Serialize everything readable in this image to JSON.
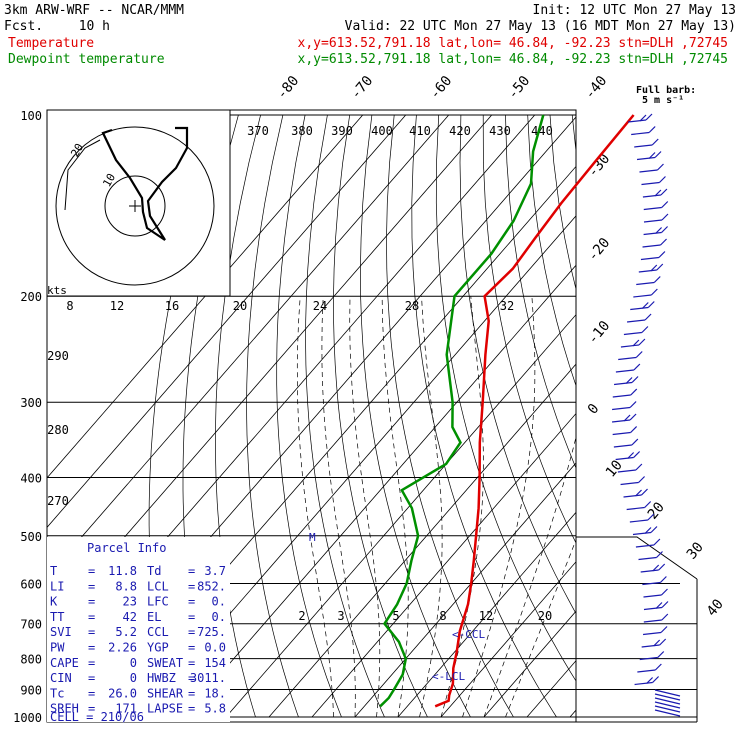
{
  "header": {
    "model": "3km ARW-WRF -- NCAR/MMM",
    "init": "Init: 12 UTC Mon 27 May 13",
    "fcst_label": "Fcst.",
    "fcst_value": "10 h",
    "valid": "Valid: 22 UTC Mon 27 May 13 (16 MDT Mon 27 May 13)",
    "temp_label": "Temperature",
    "temp_info": "x,y=613.52,791.18   lat,lon= 46.84, -92.23  stn=DLH ,72745",
    "dew_label": "Dewpoint temperature",
    "dew_info": "x,y=613.52,791.18   lat,lon= 46.84, -92.23  stn=DLH ,72745"
  },
  "wind_legend": {
    "line1": "Full barb:",
    "line2": "5 m s⁻¹"
  },
  "hodograph": {
    "units_label": "kts",
    "ring_labels": [
      "10",
      "20"
    ]
  },
  "parcel_info": {
    "title": "Parcel Info",
    "rows": [
      {
        "k1": "T",
        "v1": "11.8",
        "k2": "Td",
        "v2": "3.7"
      },
      {
        "k1": "LI",
        "v1": "8.8",
        "k2": "LCL",
        "v2": "852."
      },
      {
        "k1": "K",
        "v1": "23",
        "k2": "LFC",
        "v2": "0."
      },
      {
        "k1": "TT",
        "v1": "42",
        "k2": "EL",
        "v2": "0."
      },
      {
        "k1": "SVI",
        "v1": "5.2",
        "k2": "CCL",
        "v2": "725."
      },
      {
        "k1": "PW",
        "v1": "2.26",
        "k2": "YGP",
        "v2": "0.0"
      },
      {
        "k1": "CAPE",
        "v1": "0",
        "k2": "SWEAT",
        "v2": "154"
      },
      {
        "k1": "CIN",
        "v1": "0",
        "k2": "HWBZ",
        "v2": "3011."
      },
      {
        "k1": "Tc",
        "v1": "26.0",
        "k2": "SHEAR",
        "v2": "18."
      },
      {
        "k1": "SREH",
        "v1": "171",
        "k2": "LAPSE",
        "v2": "5.8"
      }
    ],
    "cell": "CELL = 210/06"
  },
  "markers": {
    "ccl": "<-CCL",
    "lcl": "<-LCL",
    "m": "M"
  },
  "colors": {
    "temperature": "#e00000",
    "dewpoint": "#009000",
    "text_blue": "#1a1ab0",
    "grid": "#000000"
  },
  "chart_data": {
    "type": "line",
    "title": "",
    "xlabel": "",
    "ylabel": "",
    "y_axis": {
      "scale": "log",
      "reversed": true,
      "range": [
        1000,
        100
      ],
      "ticks": [
        100,
        200,
        300,
        400,
        500,
        600,
        700,
        800,
        900,
        1000
      ]
    },
    "isotherm_labels": [
      "-80",
      "-70",
      "-60",
      "-50",
      "-40",
      "-30",
      "-20",
      "-10",
      "0",
      "10",
      "20",
      "30",
      "40"
    ],
    "theta_e_labels": [
      "370",
      "380",
      "390",
      "400",
      "410",
      "420",
      "430",
      "440"
    ],
    "mixing_ratio_labels": [
      "8",
      "12",
      "16",
      "20",
      "24",
      "28",
      "32"
    ],
    "mixing_ratio_labels_lower": [
      "2",
      "3",
      "5",
      "8",
      "12",
      "20"
    ],
    "dry_adiabat_labels": [
      "290",
      "280",
      "270"
    ],
    "series": [
      {
        "name": "Temperature",
        "color": "#e00000",
        "points": [
          {
            "p": 960,
            "t": 16.5
          },
          {
            "p": 940,
            "t": 18.5
          },
          {
            "p": 920,
            "t": 17.5
          },
          {
            "p": 880,
            "t": 16.0
          },
          {
            "p": 830,
            "t": 13.0
          },
          {
            "p": 780,
            "t": 10.5
          },
          {
            "p": 720,
            "t": 7.0
          },
          {
            "p": 650,
            "t": 3.5
          },
          {
            "p": 600,
            "t": 0.0
          },
          {
            "p": 550,
            "t": -4.0
          },
          {
            "p": 500,
            "t": -8.5
          },
          {
            "p": 450,
            "t": -13.5
          },
          {
            "p": 400,
            "t": -19.5
          },
          {
            "p": 350,
            "t": -26.5
          },
          {
            "p": 300,
            "t": -34.0
          },
          {
            "p": 250,
            "t": -43.0
          },
          {
            "p": 220,
            "t": -49.0
          },
          {
            "p": 200,
            "t": -55.0
          },
          {
            "p": 180,
            "t": -54.0
          },
          {
            "p": 160,
            "t": -55.0
          },
          {
            "p": 140,
            "t": -56.0
          },
          {
            "p": 120,
            "t": -56.5
          },
          {
            "p": 100,
            "t": -57.0
          }
        ]
      },
      {
        "name": "Dewpoint temperature",
        "color": "#009000",
        "points": [
          {
            "p": 960,
            "t": 3.7
          },
          {
            "p": 930,
            "t": 4.0
          },
          {
            "p": 900,
            "t": 3.5
          },
          {
            "p": 850,
            "t": 2.5
          },
          {
            "p": 800,
            "t": 0.0
          },
          {
            "p": 750,
            "t": -5.0
          },
          {
            "p": 700,
            "t": -12.0
          },
          {
            "p": 650,
            "t": -13.0
          },
          {
            "p": 600,
            "t": -15.0
          },
          {
            "p": 550,
            "t": -18.5
          },
          {
            "p": 500,
            "t": -22.0
          },
          {
            "p": 450,
            "t": -29.0
          },
          {
            "p": 420,
            "t": -35.0
          },
          {
            "p": 380,
            "t": -30.0
          },
          {
            "p": 350,
            "t": -31.0
          },
          {
            "p": 330,
            "t": -36.0
          },
          {
            "p": 300,
            "t": -41.0
          },
          {
            "p": 250,
            "t": -52.0
          },
          {
            "p": 200,
            "t": -62.0
          },
          {
            "p": 170,
            "t": -62.0
          },
          {
            "p": 150,
            "t": -63.5
          },
          {
            "p": 130,
            "t": -67.0
          },
          {
            "p": 115,
            "t": -73.0
          },
          {
            "p": 100,
            "t": -78.0
          }
        ]
      }
    ]
  }
}
